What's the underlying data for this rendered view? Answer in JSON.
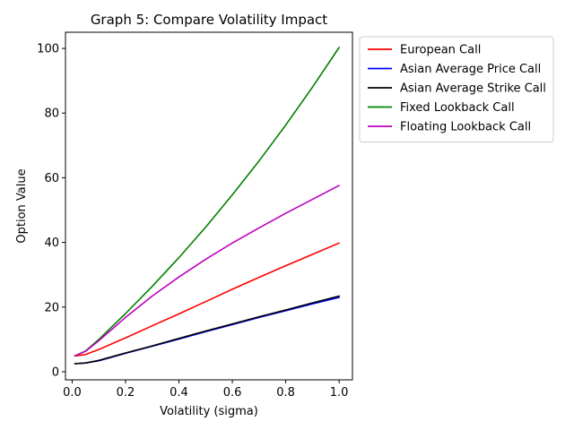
{
  "chart_data": {
    "type": "line",
    "title": "Graph 5: Compare Volatility Impact",
    "xlabel": "Volatility (sigma)",
    "ylabel": "Option Value",
    "xlim": [
      -0.025,
      1.05
    ],
    "ylim": [
      -2.5,
      105
    ],
    "xticks": [
      0.0,
      0.2,
      0.4,
      0.6,
      0.8,
      1.0
    ],
    "xtick_labels": [
      "0.0",
      "0.2",
      "0.4",
      "0.6",
      "0.8",
      "1.0"
    ],
    "yticks": [
      0,
      20,
      40,
      60,
      80,
      100
    ],
    "ytick_labels": [
      "0",
      "20",
      "40",
      "60",
      "80",
      "100"
    ],
    "grid": false,
    "legend_position": "outside-top-right",
    "x": [
      0.01,
      0.05,
      0.1,
      0.2,
      0.3,
      0.4,
      0.5,
      0.6,
      0.7,
      0.8,
      0.9,
      1.0
    ],
    "series": [
      {
        "name": "European Call",
        "color": "#ff0000",
        "values": [
          4.9,
          5.3,
          6.9,
          10.5,
          14.2,
          17.9,
          21.7,
          25.5,
          29.2,
          32.8,
          36.3,
          39.8
        ]
      },
      {
        "name": "Asian Average Price Call",
        "color": "#0000ff",
        "values": [
          2.5,
          2.7,
          3.4,
          5.7,
          7.9,
          10.1,
          12.4,
          14.6,
          16.8,
          18.9,
          21.0,
          23.0
        ]
      },
      {
        "name": "Asian Average Strike Call",
        "color": "#000000",
        "values": [
          2.5,
          2.7,
          3.5,
          5.8,
          8.0,
          10.3,
          12.6,
          14.8,
          17.0,
          19.1,
          21.3,
          23.4
        ]
      },
      {
        "name": "Fixed Lookback Call",
        "color": "#008000",
        "values": [
          4.9,
          6.4,
          10.0,
          18.0,
          26.4,
          35.3,
          44.7,
          54.7,
          65.2,
          76.3,
          88.0,
          100.3
        ]
      },
      {
        "name": "Floating Lookback Call",
        "color": "#bf00bf",
        "values": [
          4.9,
          6.3,
          9.6,
          16.8,
          23.4,
          29.3,
          34.8,
          39.8,
          44.5,
          49.0,
          53.3,
          57.6
        ]
      }
    ]
  }
}
